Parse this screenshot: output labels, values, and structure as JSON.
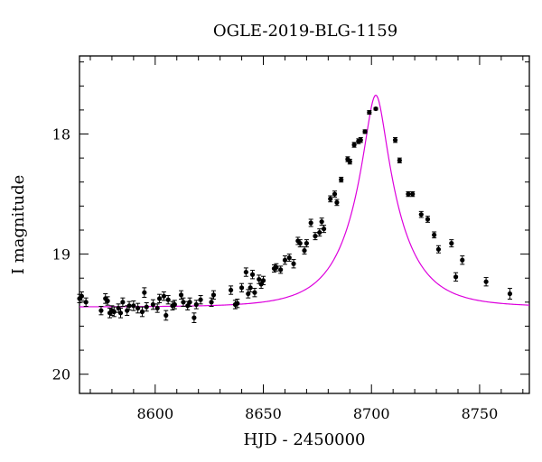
{
  "chart_data": {
    "type": "scatter",
    "title": "OGLE-2019-BLG-1159",
    "xlabel": "HJD - 2450000",
    "ylabel": "I magnitude",
    "xlim": [
      8565,
      8773
    ],
    "ylim": [
      20.16,
      17.35
    ],
    "y_inverted": true,
    "x_ticks": [
      8600,
      8650,
      8700,
      8750
    ],
    "x_tick_labels": [
      "8600",
      "8650",
      "8700",
      "8750"
    ],
    "y_ticks": [
      18,
      19,
      20
    ],
    "y_tick_labels": [
      "18",
      "19",
      "20"
    ],
    "x_minor_step": 10,
    "y_minor_step": 0.2,
    "grid": false,
    "legend": "none",
    "colors": {
      "model": "#dd00dd",
      "points": "#000000"
    },
    "model": {
      "type": "pspl",
      "t0": 8702.0,
      "u0": 0.2,
      "tE": 22.5,
      "baseline": 19.44
    },
    "series": [
      {
        "x": [
          8565,
          8566,
          8568,
          8575,
          8577,
          8578,
          8579,
          8580,
          8581,
          8583,
          8584,
          8585,
          8587,
          8588,
          8590,
          8592,
          8594,
          8595,
          8596,
          8599,
          8601,
          8602,
          8604,
          8605,
          8606,
          8608,
          8609,
          8612,
          8613,
          8615,
          8616,
          8618,
          8619,
          8621,
          8626,
          8627,
          8635,
          8637,
          8638,
          8640,
          8642,
          8643,
          8644,
          8645,
          8646,
          8648,
          8649,
          8650,
          8655,
          8656,
          8658,
          8660,
          8662,
          8664,
          8666,
          8667,
          8669,
          8670,
          8672,
          8674,
          8676,
          8677,
          8678,
          8681,
          8683,
          8684,
          8686,
          8689,
          8690,
          8692,
          8694,
          8695,
          8697,
          8699,
          8702,
          8711,
          8713,
          8717,
          8719,
          8723,
          8726,
          8729,
          8731,
          8737,
          8739,
          8742,
          8753,
          8764
        ],
        "y": [
          19.37,
          19.35,
          19.4,
          19.47,
          19.37,
          19.39,
          19.49,
          19.47,
          19.48,
          19.45,
          19.49,
          19.4,
          19.47,
          19.43,
          19.43,
          19.45,
          19.48,
          19.32,
          19.44,
          19.42,
          19.45,
          19.37,
          19.35,
          19.51,
          19.38,
          19.43,
          19.42,
          19.34,
          19.4,
          19.43,
          19.4,
          19.53,
          19.42,
          19.38,
          19.4,
          19.34,
          19.3,
          19.42,
          19.41,
          19.28,
          19.15,
          19.33,
          19.28,
          19.17,
          19.32,
          19.21,
          19.25,
          19.22,
          19.12,
          19.11,
          19.13,
          19.05,
          19.03,
          19.08,
          18.89,
          18.91,
          18.97,
          18.91,
          18.74,
          18.85,
          18.82,
          18.73,
          18.79,
          18.54,
          18.5,
          18.57,
          18.38,
          18.21,
          18.23,
          18.09,
          18.06,
          18.05,
          17.98,
          17.82,
          17.79,
          18.05,
          18.22,
          18.5,
          18.5,
          18.67,
          18.71,
          18.84,
          18.96,
          18.91,
          19.19,
          19.05,
          19.23,
          19.33
        ],
        "yerr": [
          0.035,
          0.035,
          0.035,
          0.035,
          0.04,
          0.035,
          0.04,
          0.04,
          0.04,
          0.035,
          0.04,
          0.035,
          0.04,
          0.035,
          0.04,
          0.04,
          0.04,
          0.04,
          0.035,
          0.04,
          0.035,
          0.035,
          0.035,
          0.04,
          0.035,
          0.035,
          0.035,
          0.035,
          0.035,
          0.035,
          0.035,
          0.04,
          0.035,
          0.035,
          0.035,
          0.035,
          0.035,
          0.035,
          0.035,
          0.035,
          0.035,
          0.035,
          0.035,
          0.035,
          0.035,
          0.035,
          0.035,
          0.035,
          0.03,
          0.03,
          0.03,
          0.035,
          0.03,
          0.035,
          0.03,
          0.03,
          0.03,
          0.03,
          0.03,
          0.03,
          0.03,
          0.03,
          0.03,
          0.025,
          0.025,
          0.025,
          0.02,
          0.02,
          0.02,
          0.02,
          0.02,
          0.02,
          0.015,
          0.015,
          0.01,
          0.02,
          0.02,
          0.02,
          0.02,
          0.025,
          0.025,
          0.025,
          0.03,
          0.03,
          0.035,
          0.035,
          0.035,
          0.045
        ]
      }
    ]
  }
}
